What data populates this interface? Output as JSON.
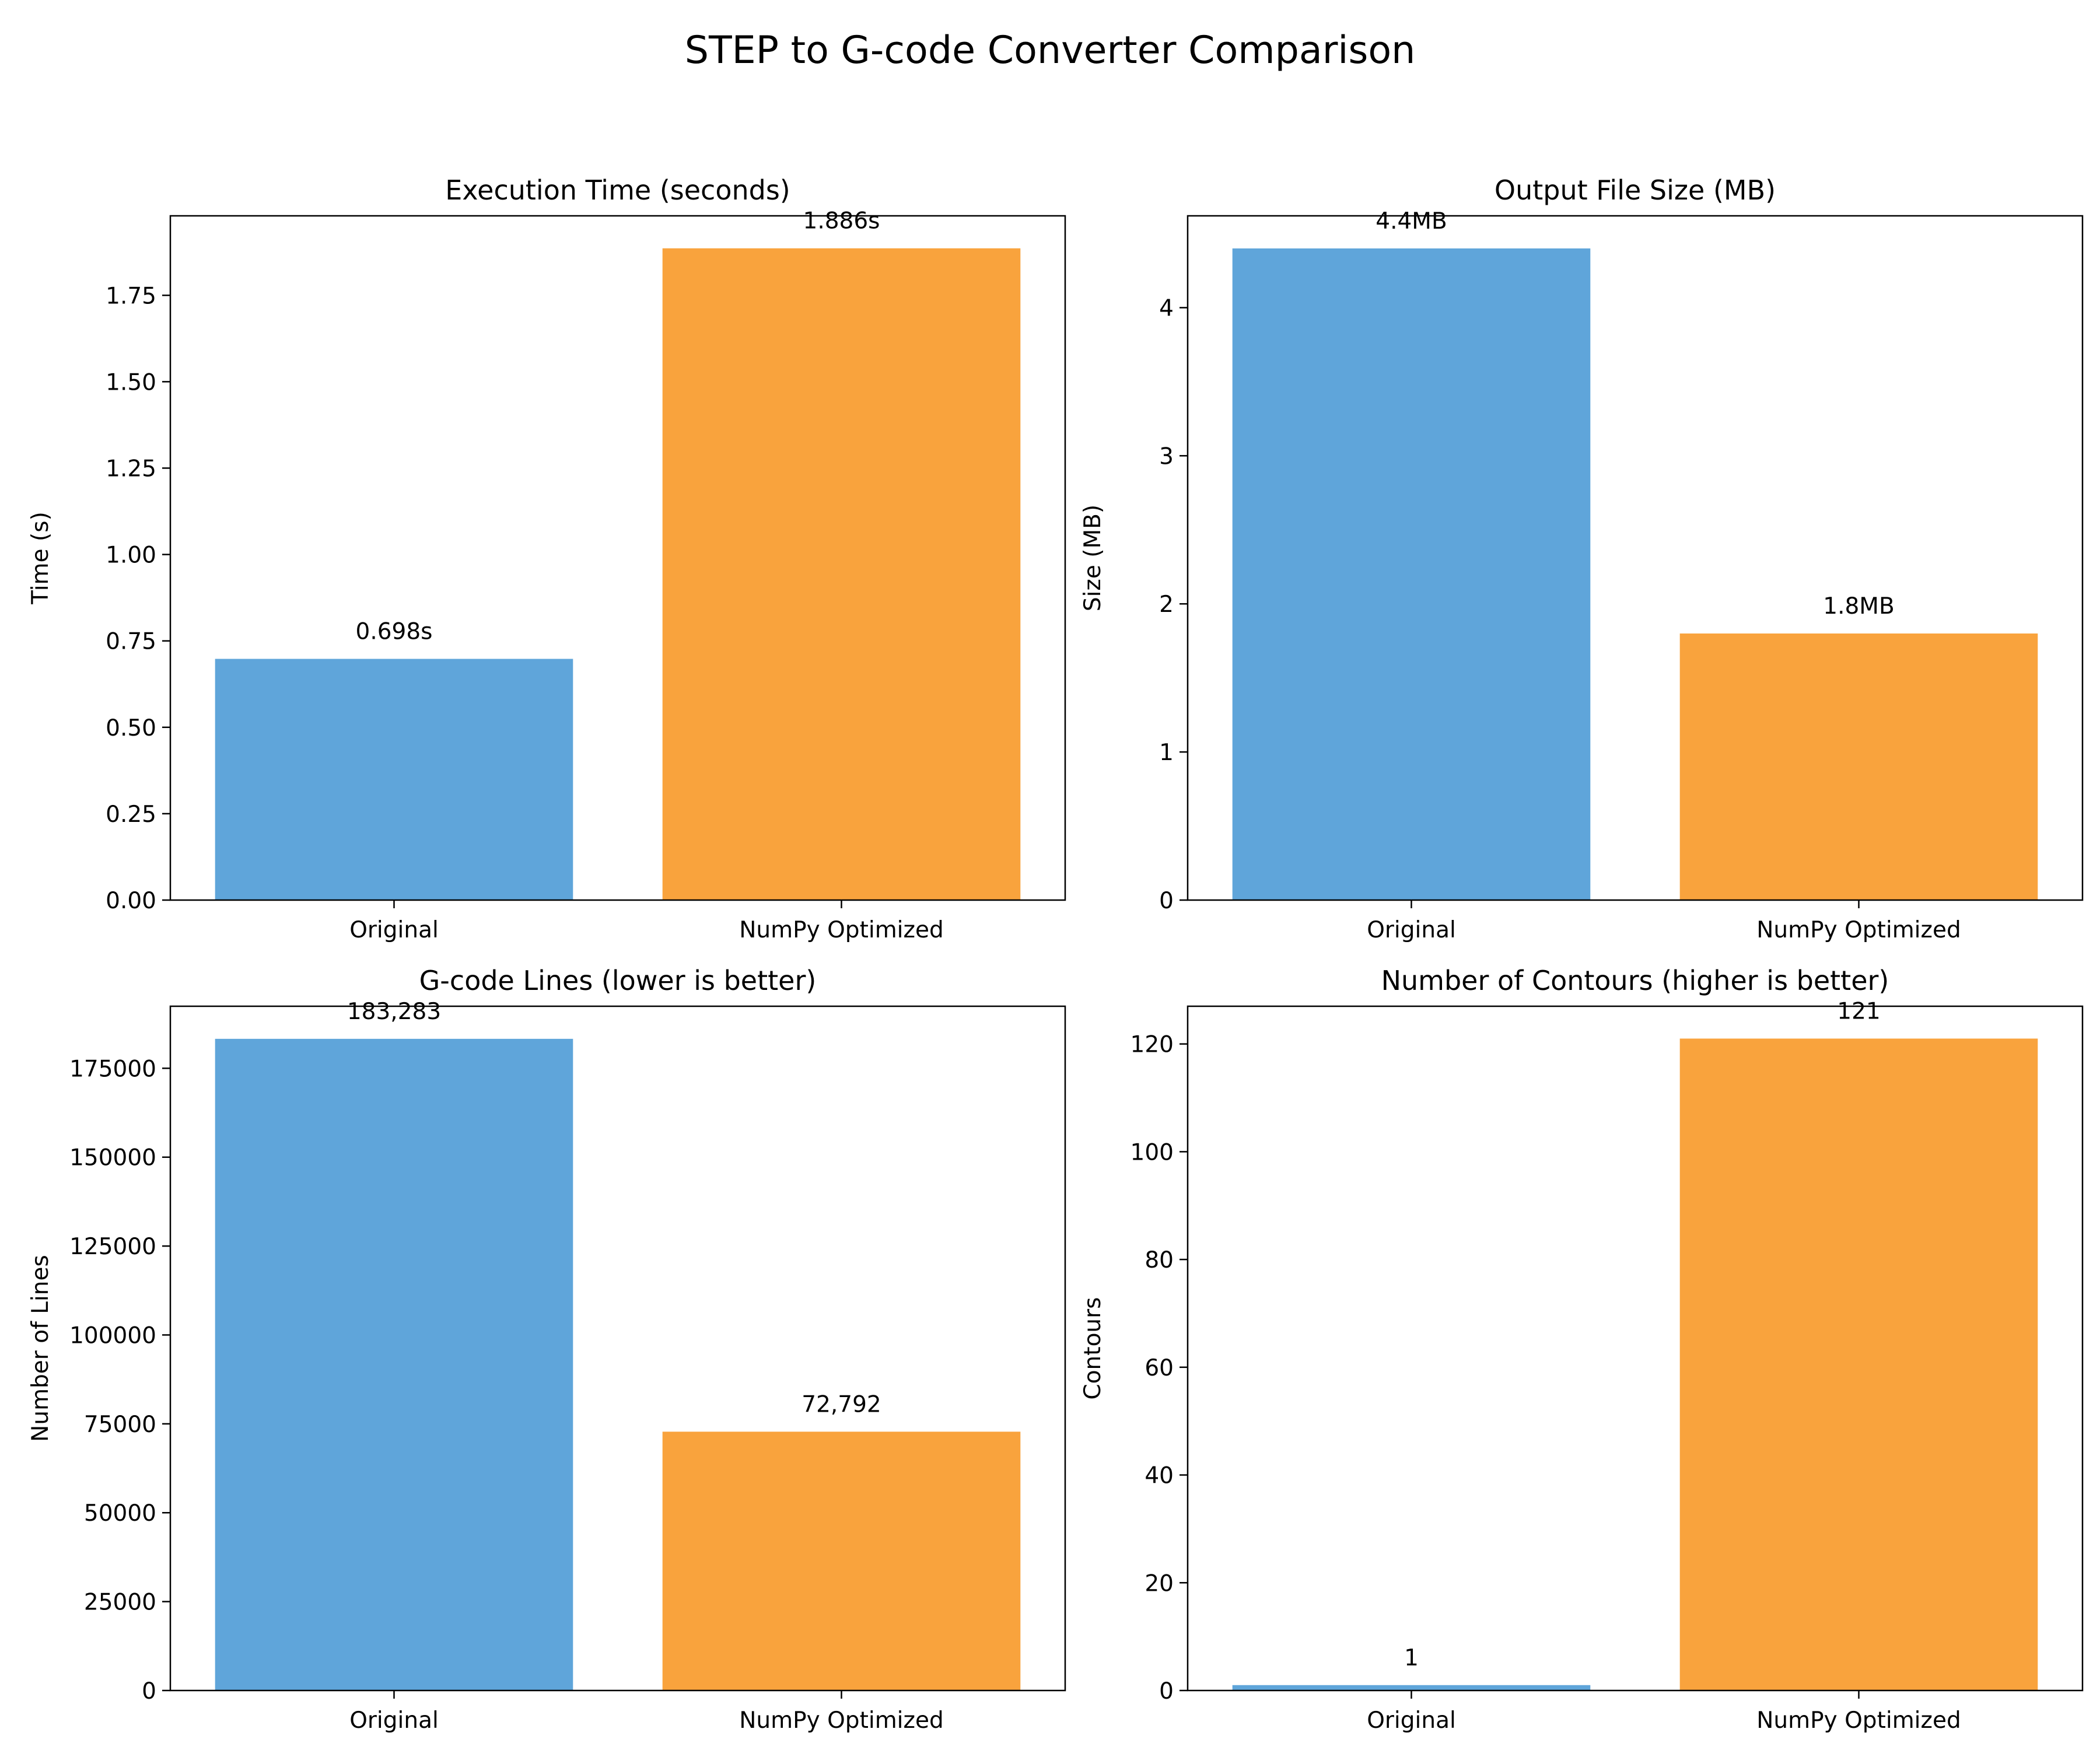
{
  "figure": {
    "title": "STEP to G-code Converter Comparison"
  },
  "colors": {
    "original": "#5fa5da",
    "optimized": "#f9a33d",
    "axis": "#000000",
    "background": "#ffffff"
  },
  "chart_data": [
    {
      "type": "bar",
      "title": "Execution Time (seconds)",
      "xlabel": "",
      "ylabel": "Time (s)",
      "categories": [
        "Original",
        "NumPy Optimized"
      ],
      "values": [
        0.698,
        1.886
      ],
      "data_labels": [
        "0.698s",
        "1.886s"
      ],
      "ylim": [
        0,
        1.98
      ],
      "yticks": [
        0,
        0.25,
        0.5,
        0.75,
        1.0,
        1.25,
        1.5,
        1.75
      ],
      "ytick_labels": [
        "0.00",
        "0.25",
        "0.50",
        "0.75",
        "1.00",
        "1.25",
        "1.50",
        "1.75"
      ],
      "bar_colors": [
        "#5fa5da",
        "#f9a33d"
      ],
      "grid": false,
      "legend": "none"
    },
    {
      "type": "bar",
      "title": "Output File Size (MB)",
      "xlabel": "",
      "ylabel": "Size (MB)",
      "categories": [
        "Original",
        "NumPy Optimized"
      ],
      "values": [
        4.4,
        1.8
      ],
      "data_labels": [
        "4.4MB",
        "1.8MB"
      ],
      "ylim": [
        0,
        4.62
      ],
      "yticks": [
        0,
        1,
        2,
        3,
        4
      ],
      "ytick_labels": [
        "0",
        "1",
        "2",
        "3",
        "4"
      ],
      "bar_colors": [
        "#5fa5da",
        "#f9a33d"
      ],
      "grid": false,
      "legend": "none"
    },
    {
      "type": "bar",
      "title": "G-code Lines (lower is better)",
      "xlabel": "",
      "ylabel": "Number of Lines",
      "categories": [
        "Original",
        "NumPy Optimized"
      ],
      "values": [
        183283,
        72792
      ],
      "data_labels": [
        "183,283",
        "72,792"
      ],
      "ylim": [
        0,
        192447
      ],
      "yticks": [
        0,
        25000,
        50000,
        75000,
        100000,
        125000,
        150000,
        175000
      ],
      "ytick_labels": [
        "0",
        "25000",
        "50000",
        "75000",
        "100000",
        "125000",
        "150000",
        "175000"
      ],
      "bar_colors": [
        "#5fa5da",
        "#f9a33d"
      ],
      "grid": false,
      "legend": "none"
    },
    {
      "type": "bar",
      "title": "Number of Contours (higher is better)",
      "xlabel": "",
      "ylabel": "Contours",
      "categories": [
        "Original",
        "NumPy Optimized"
      ],
      "values": [
        1,
        121
      ],
      "data_labels": [
        "1",
        "121"
      ],
      "ylim": [
        0,
        127
      ],
      "yticks": [
        0,
        20,
        40,
        60,
        80,
        100,
        120
      ],
      "ytick_labels": [
        "0",
        "20",
        "40",
        "60",
        "80",
        "100",
        "120"
      ],
      "bar_colors": [
        "#5fa5da",
        "#f9a33d"
      ],
      "grid": false,
      "legend": "none"
    }
  ]
}
